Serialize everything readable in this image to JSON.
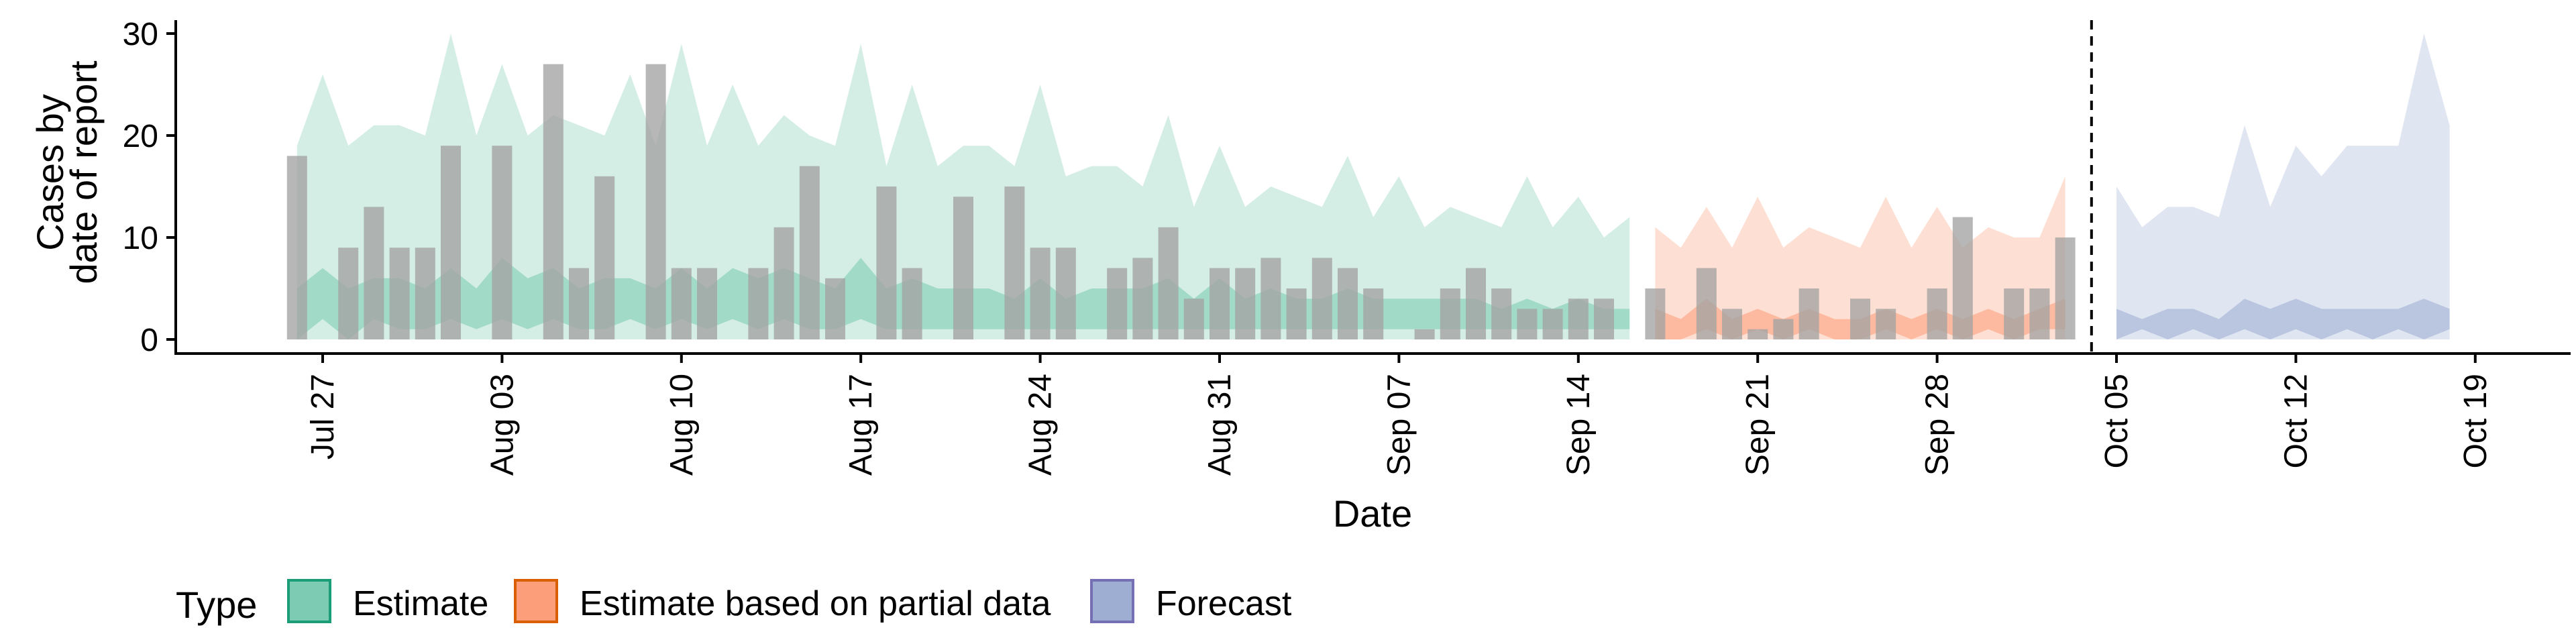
{
  "chart_data": {
    "type": "bar",
    "xlabel": "Date",
    "ylabel_lines": [
      "Cases by",
      "date of report"
    ],
    "ylim": [
      0,
      30
    ],
    "y_ticks": [
      0,
      10,
      20,
      30
    ],
    "x_ticks": [
      "Jul 27",
      "Aug 03",
      "Aug 10",
      "Aug 17",
      "Aug 24",
      "Aug 31",
      "Sep 07",
      "Sep 14",
      "Sep 21",
      "Sep 28",
      "Oct 05",
      "Oct 12",
      "Oct 19"
    ],
    "date_range": [
      "2020-07-26",
      "2020-10-20"
    ],
    "tick_dates": [
      "2020-07-27",
      "2020-08-03",
      "2020-08-10",
      "2020-08-17",
      "2020-08-24",
      "2020-08-31",
      "2020-09-07",
      "2020-09-14",
      "2020-09-21",
      "2020-09-28",
      "2020-10-05",
      "2020-10-12",
      "2020-10-19"
    ],
    "forecast_date": "2020-10-04",
    "observed_cases": [
      {
        "date": "2020-07-26",
        "value": 18
      },
      {
        "date": "2020-07-27",
        "value": 0
      },
      {
        "date": "2020-07-28",
        "value": 9
      },
      {
        "date": "2020-07-29",
        "value": 13
      },
      {
        "date": "2020-07-30",
        "value": 9
      },
      {
        "date": "2020-07-31",
        "value": 9
      },
      {
        "date": "2020-08-01",
        "value": 19
      },
      {
        "date": "2020-08-02",
        "value": 0
      },
      {
        "date": "2020-08-03",
        "value": 19
      },
      {
        "date": "2020-08-04",
        "value": 0
      },
      {
        "date": "2020-08-05",
        "value": 27
      },
      {
        "date": "2020-08-06",
        "value": 7
      },
      {
        "date": "2020-08-07",
        "value": 16
      },
      {
        "date": "2020-08-08",
        "value": 0
      },
      {
        "date": "2020-08-09",
        "value": 27
      },
      {
        "date": "2020-08-10",
        "value": 7
      },
      {
        "date": "2020-08-11",
        "value": 7
      },
      {
        "date": "2020-08-12",
        "value": 0
      },
      {
        "date": "2020-08-13",
        "value": 7
      },
      {
        "date": "2020-08-14",
        "value": 11
      },
      {
        "date": "2020-08-15",
        "value": 17
      },
      {
        "date": "2020-08-16",
        "value": 6
      },
      {
        "date": "2020-08-17",
        "value": 0
      },
      {
        "date": "2020-08-18",
        "value": 15
      },
      {
        "date": "2020-08-19",
        "value": 7
      },
      {
        "date": "2020-08-20",
        "value": 0
      },
      {
        "date": "2020-08-21",
        "value": 14
      },
      {
        "date": "2020-08-22",
        "value": 0
      },
      {
        "date": "2020-08-23",
        "value": 15
      },
      {
        "date": "2020-08-24",
        "value": 9
      },
      {
        "date": "2020-08-25",
        "value": 9
      },
      {
        "date": "2020-08-26",
        "value": 0
      },
      {
        "date": "2020-08-27",
        "value": 7
      },
      {
        "date": "2020-08-28",
        "value": 8
      },
      {
        "date": "2020-08-29",
        "value": 11
      },
      {
        "date": "2020-08-30",
        "value": 4
      },
      {
        "date": "2020-08-31",
        "value": 7
      },
      {
        "date": "2020-09-01",
        "value": 7
      },
      {
        "date": "2020-09-02",
        "value": 8
      },
      {
        "date": "2020-09-03",
        "value": 5
      },
      {
        "date": "2020-09-04",
        "value": 8
      },
      {
        "date": "2020-09-05",
        "value": 7
      },
      {
        "date": "2020-09-06",
        "value": 5
      },
      {
        "date": "2020-09-07",
        "value": 0
      },
      {
        "date": "2020-09-08",
        "value": 1
      },
      {
        "date": "2020-09-09",
        "value": 5
      },
      {
        "date": "2020-09-10",
        "value": 7
      },
      {
        "date": "2020-09-11",
        "value": 5
      },
      {
        "date": "2020-09-12",
        "value": 3
      },
      {
        "date": "2020-09-13",
        "value": 3
      },
      {
        "date": "2020-09-14",
        "value": 4
      },
      {
        "date": "2020-09-15",
        "value": 4
      },
      {
        "date": "2020-09-16",
        "value": 0
      },
      {
        "date": "2020-09-17",
        "value": 5
      },
      {
        "date": "2020-09-18",
        "value": 0
      },
      {
        "date": "2020-09-19",
        "value": 7
      },
      {
        "date": "2020-09-20",
        "value": 3
      },
      {
        "date": "2020-09-21",
        "value": 1
      },
      {
        "date": "2020-09-22",
        "value": 2
      },
      {
        "date": "2020-09-23",
        "value": 5
      },
      {
        "date": "2020-09-24",
        "value": 0
      },
      {
        "date": "2020-09-25",
        "value": 4
      },
      {
        "date": "2020-09-26",
        "value": 3
      },
      {
        "date": "2020-09-27",
        "value": 0
      },
      {
        "date": "2020-09-28",
        "value": 5
      },
      {
        "date": "2020-09-29",
        "value": 12
      },
      {
        "date": "2020-09-30",
        "value": 0
      },
      {
        "date": "2020-10-01",
        "value": 5
      },
      {
        "date": "2020-10-02",
        "value": 5
      },
      {
        "date": "2020-10-03",
        "value": 10
      }
    ],
    "series": [
      {
        "name": "Estimate",
        "color": "#66c2a5",
        "stroke": "#1b9e77",
        "dates": [
          "2020-07-26",
          "2020-07-27",
          "2020-07-28",
          "2020-07-29",
          "2020-07-30",
          "2020-07-31",
          "2020-08-01",
          "2020-08-02",
          "2020-08-03",
          "2020-08-04",
          "2020-08-05",
          "2020-08-06",
          "2020-08-07",
          "2020-08-08",
          "2020-08-09",
          "2020-08-10",
          "2020-08-11",
          "2020-08-12",
          "2020-08-13",
          "2020-08-14",
          "2020-08-15",
          "2020-08-16",
          "2020-08-17",
          "2020-08-18",
          "2020-08-19",
          "2020-08-20",
          "2020-08-21",
          "2020-08-22",
          "2020-08-23",
          "2020-08-24",
          "2020-08-25",
          "2020-08-26",
          "2020-08-27",
          "2020-08-28",
          "2020-08-29",
          "2020-08-30",
          "2020-08-31",
          "2020-09-01",
          "2020-09-02",
          "2020-09-03",
          "2020-09-04",
          "2020-09-05",
          "2020-09-06",
          "2020-09-07",
          "2020-09-08",
          "2020-09-09",
          "2020-09-10",
          "2020-09-11",
          "2020-09-12",
          "2020-09-13",
          "2020-09-14",
          "2020-09-15",
          "2020-09-16"
        ],
        "upper_90": [
          19,
          26,
          19,
          21,
          21,
          20,
          30,
          20,
          27,
          20,
          22,
          21,
          20,
          26,
          19,
          29,
          19,
          25,
          19,
          22,
          20,
          19,
          29,
          17,
          25,
          17,
          19,
          19,
          17,
          25,
          16,
          17,
          17,
          15,
          22,
          13,
          19,
          13,
          15,
          14,
          13,
          18,
          12,
          16,
          11,
          13,
          12,
          11,
          16,
          11,
          14,
          10,
          12
        ],
        "lower_90": [
          0,
          0,
          0,
          0,
          0,
          0,
          0,
          0,
          0,
          0,
          0,
          0,
          0,
          0,
          0,
          0,
          0,
          0,
          0,
          0,
          0,
          0,
          0,
          0,
          0,
          0,
          0,
          0,
          0,
          0,
          0,
          0,
          0,
          0,
          0,
          0,
          0,
          0,
          0,
          0,
          0,
          0,
          0,
          0,
          0,
          0,
          0,
          0,
          0,
          0,
          0,
          0,
          0
        ],
        "upper_50": [
          5,
          7,
          5,
          6,
          6,
          5,
          7,
          5,
          8,
          6,
          7,
          5,
          6,
          6,
          5,
          7,
          5,
          7,
          6,
          7,
          6,
          5,
          8,
          5,
          6,
          5,
          5,
          5,
          4,
          6,
          4,
          5,
          5,
          5,
          6,
          4,
          6,
          4,
          5,
          4,
          4,
          5,
          4,
          4,
          4,
          4,
          4,
          3,
          4,
          3,
          4,
          3,
          3
        ],
        "lower_50": [
          0,
          2,
          0,
          2,
          1,
          1,
          2,
          1,
          2,
          1,
          2,
          1,
          1,
          2,
          1,
          2,
          1,
          2,
          1,
          2,
          1,
          1,
          2,
          1,
          1,
          1,
          1,
          1,
          1,
          1,
          1,
          1,
          1,
          1,
          1,
          1,
          1,
          1,
          1,
          1,
          1,
          1,
          1,
          1,
          1,
          1,
          1,
          1,
          1,
          1,
          1,
          1,
          1
        ]
      },
      {
        "name": "Estimate based on partial data",
        "color": "#fc8d62",
        "stroke": "#d95f02",
        "dates": [
          "2020-09-17",
          "2020-09-18",
          "2020-09-19",
          "2020-09-20",
          "2020-09-21",
          "2020-09-22",
          "2020-09-23",
          "2020-09-24",
          "2020-09-25",
          "2020-09-26",
          "2020-09-27",
          "2020-09-28",
          "2020-09-29",
          "2020-09-30",
          "2020-10-01",
          "2020-10-02",
          "2020-10-03"
        ],
        "upper_90": [
          11,
          9,
          13,
          9,
          14,
          9,
          11,
          10,
          9,
          14,
          9,
          13,
          9,
          11,
          10,
          10,
          16
        ],
        "lower_90": [
          0,
          0,
          0,
          0,
          0,
          0,
          0,
          0,
          0,
          0,
          0,
          0,
          0,
          0,
          0,
          0,
          0
        ],
        "upper_50": [
          3,
          2,
          4,
          2,
          3,
          2,
          3,
          2,
          2,
          3,
          2,
          3,
          2,
          3,
          2,
          3,
          4
        ],
        "lower_50": [
          0,
          0,
          1,
          0,
          1,
          0,
          1,
          0,
          0,
          1,
          0,
          1,
          0,
          1,
          0,
          1,
          1
        ]
      },
      {
        "name": "Forecast",
        "color": "#8da0cb",
        "stroke": "#7570b3",
        "dates": [
          "2020-10-05",
          "2020-10-06",
          "2020-10-07",
          "2020-10-08",
          "2020-10-09",
          "2020-10-10",
          "2020-10-11",
          "2020-10-12",
          "2020-10-13",
          "2020-10-14",
          "2020-10-15",
          "2020-10-16",
          "2020-10-17",
          "2020-10-18"
        ],
        "upper_90": [
          15,
          11,
          13,
          13,
          12,
          21,
          13,
          19,
          16,
          19,
          19,
          19,
          30,
          21
        ],
        "lower_90": [
          0,
          0,
          0,
          0,
          0,
          0,
          0,
          0,
          0,
          0,
          0,
          0,
          0,
          0
        ],
        "upper_50": [
          3,
          2,
          3,
          3,
          2,
          4,
          3,
          4,
          3,
          3,
          3,
          3,
          4,
          3
        ],
        "lower_50": [
          0,
          1,
          0,
          1,
          0,
          1,
          0,
          1,
          0,
          1,
          0,
          1,
          0,
          1
        ]
      }
    ],
    "legend": {
      "title": "Type",
      "items": [
        "Estimate",
        "Estimate based on partial data",
        "Forecast"
      ],
      "position": "bottom"
    },
    "grid": false
  }
}
